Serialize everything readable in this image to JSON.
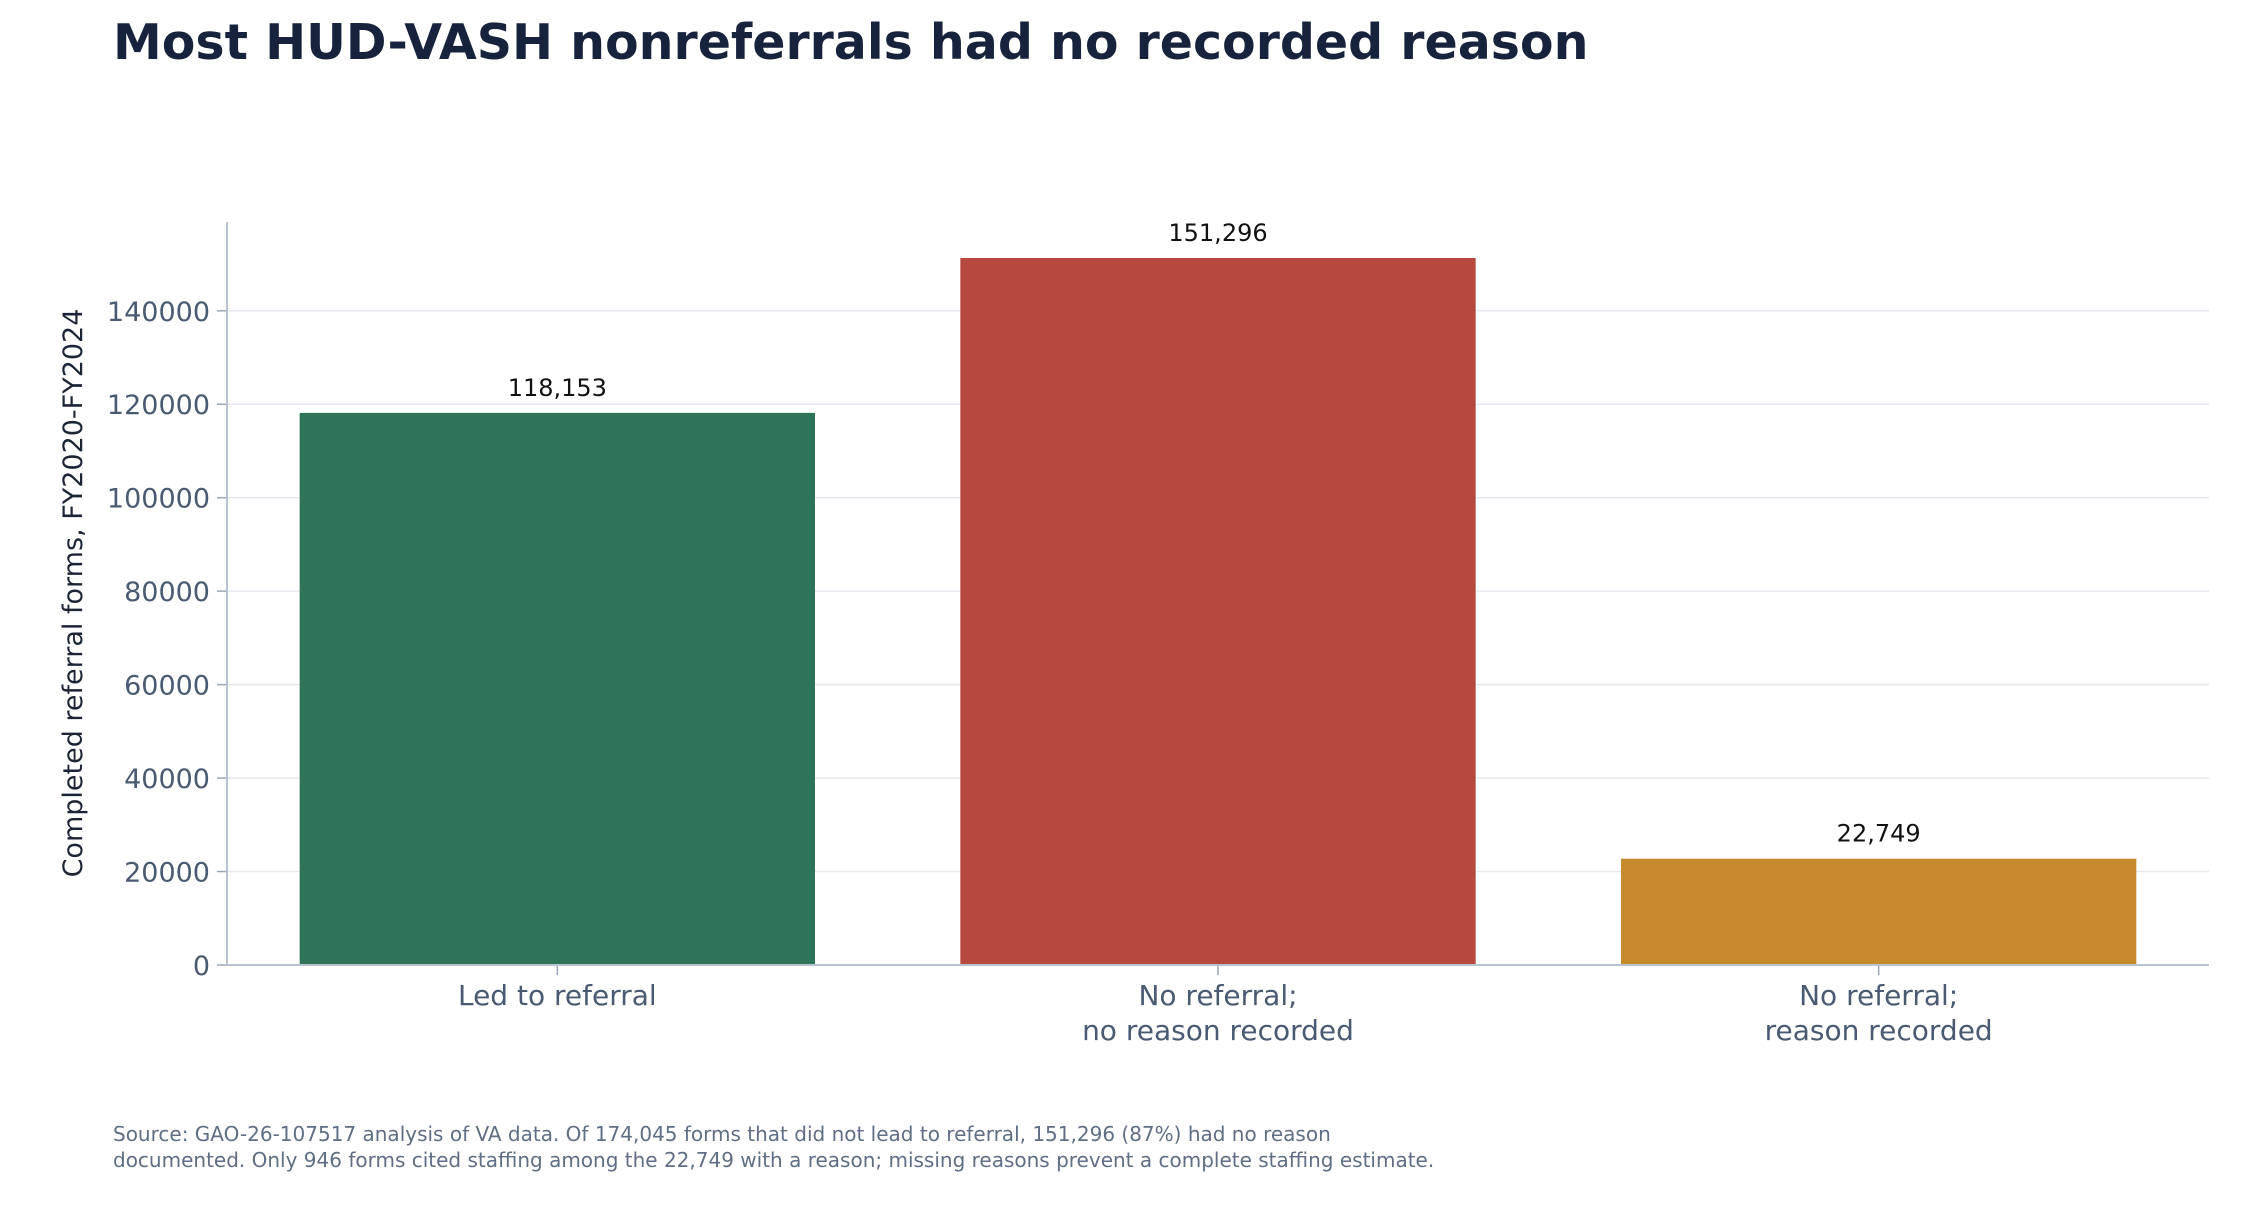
{
  "title": "Most HUD-VASH nonreferrals had no recorded reason",
  "source_note": "Source: GAO-26-107517 analysis of VA data. Of 174,045 forms that did not lead to referral, 151,296 (87%) had no reason documented. Only 946 forms cited staffing among the 22,749 with a reason; missing reasons prevent a complete staffing estimate.",
  "chart_data": {
    "type": "bar",
    "categories": [
      [
        "Led to referral"
      ],
      [
        "No referral;",
        "no reason recorded"
      ],
      [
        "No referral;",
        "reason recorded"
      ]
    ],
    "values": [
      118153,
      151296,
      22749
    ],
    "value_labels": [
      "118,153",
      "151,296",
      "22,749"
    ],
    "colors": [
      "#2e7558",
      "#b6483d",
      "#c48a2c"
    ],
    "ylabel": "Completed referral forms, FY2020-FY2024",
    "xlabel": "",
    "ylim": [
      0,
      159000
    ],
    "yticks": [
      0,
      20000,
      40000,
      60000,
      80000,
      100000,
      120000,
      140000
    ],
    "ytick_labels": [
      "0",
      "20000",
      "40000",
      "60000",
      "80000",
      "100000",
      "120000",
      "140000"
    ],
    "grid": "horizontal"
  }
}
